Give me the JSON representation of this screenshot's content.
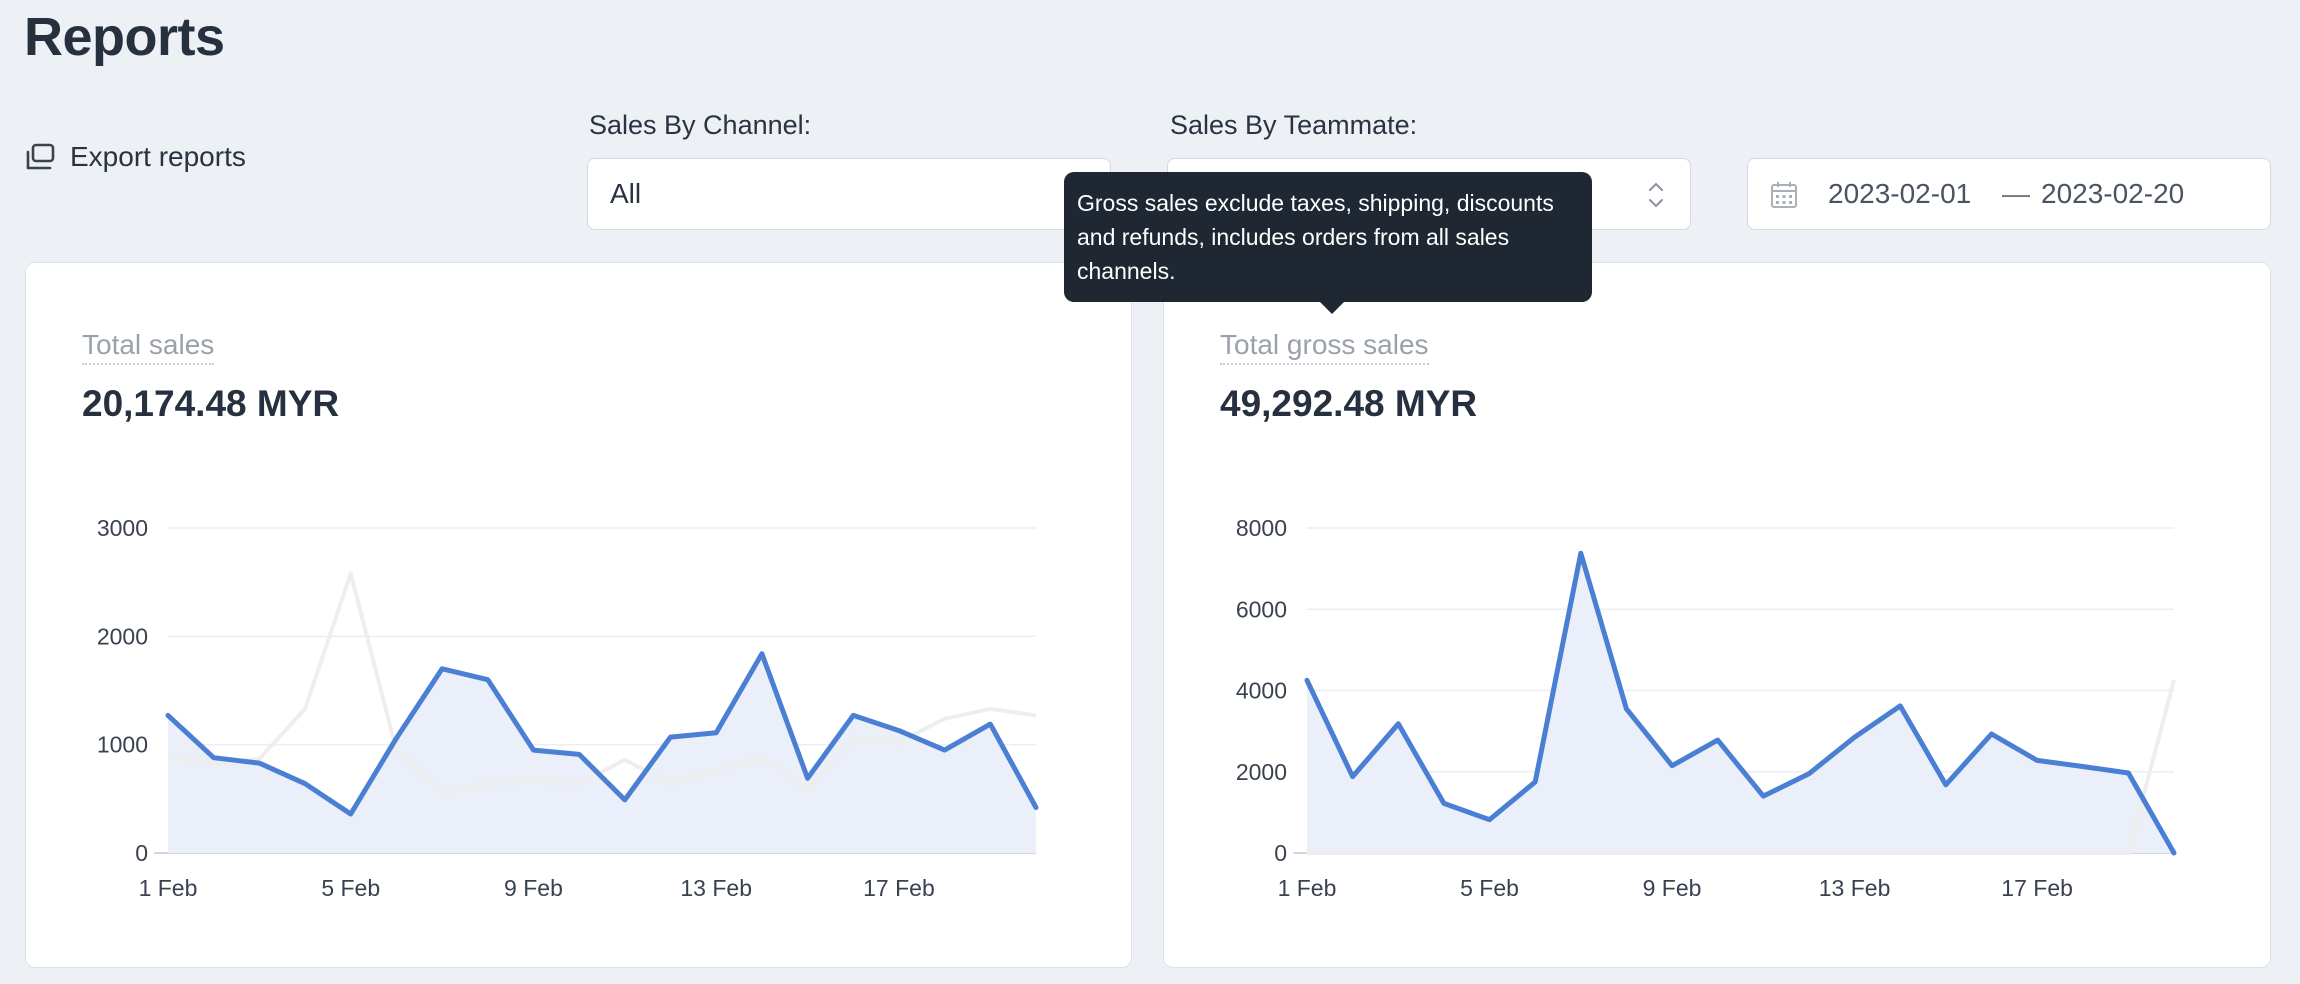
{
  "page": {
    "title": "Reports"
  },
  "toolbar": {
    "export_label": "Export reports",
    "channel": {
      "label": "Sales By Channel:",
      "value": "All"
    },
    "teammate": {
      "label": "Sales By Teammate:",
      "value": ""
    },
    "date_range": {
      "start": "2023-02-01",
      "separator": "—",
      "end": "2023-02-20"
    }
  },
  "tooltip": {
    "text": "Gross sales exclude taxes, shipping, discounts and refunds, includes orders from all sales channels."
  },
  "colors": {
    "line": "#4a7fd4",
    "fill": "#eaeff9",
    "comparison": "#eeeeee",
    "grid": "#ebedf0",
    "axis": "#c8ccd3"
  },
  "cards": {
    "total_sales": {
      "label": "Total sales",
      "value": "20,174.48 MYR"
    },
    "gross_sales": {
      "label": "Total gross sales",
      "value": "49,292.48 MYR"
    }
  },
  "chart_data": [
    {
      "type": "area",
      "x": [
        "1 Feb",
        "2 Feb",
        "3 Feb",
        "4 Feb",
        "5 Feb",
        "6 Feb",
        "7 Feb",
        "8 Feb",
        "9 Feb",
        "10 Feb",
        "11 Feb",
        "12 Feb",
        "13 Feb",
        "14 Feb",
        "15 Feb",
        "16 Feb",
        "17 Feb",
        "18 Feb",
        "19 Feb",
        "20 Feb"
      ],
      "x_tick_labels": [
        "1 Feb",
        "5 Feb",
        "9 Feb",
        "13 Feb",
        "17 Feb"
      ],
      "series": [
        {
          "values": [
            1270,
            880,
            830,
            640,
            360,
            1060,
            1700,
            1600,
            950,
            910,
            490,
            1070,
            1110,
            1840,
            690,
            1270,
            1130,
            950,
            1190,
            420
          ]
        },
        {
          "role": "comparison",
          "values": [
            900,
            820,
            870,
            1330,
            2580,
            950,
            560,
            640,
            660,
            640,
            860,
            640,
            760,
            880,
            590,
            1070,
            1020,
            1240,
            1330,
            1270
          ]
        }
      ],
      "y_ticks": [
        0,
        1000,
        2000,
        3000
      ],
      "ylim": [
        0,
        3000
      ],
      "grid": true
    },
    {
      "type": "area",
      "x": [
        "1 Feb",
        "2 Feb",
        "3 Feb",
        "4 Feb",
        "5 Feb",
        "6 Feb",
        "7 Feb",
        "8 Feb",
        "9 Feb",
        "10 Feb",
        "11 Feb",
        "12 Feb",
        "13 Feb",
        "14 Feb",
        "15 Feb",
        "16 Feb",
        "17 Feb",
        "18 Feb",
        "19 Feb",
        "20 Feb"
      ],
      "x_tick_labels": [
        "1 Feb",
        "5 Feb",
        "9 Feb",
        "13 Feb",
        "17 Feb"
      ],
      "series": [
        {
          "values": [
            4250,
            1880,
            3180,
            1220,
            820,
            1750,
            7380,
            3550,
            2150,
            2780,
            1400,
            1950,
            2850,
            3620,
            1680,
            2930,
            2280,
            2130,
            1970,
            0
          ]
        },
        {
          "role": "comparison",
          "values": [
            0,
            0,
            0,
            0,
            0,
            0,
            0,
            0,
            0,
            0,
            0,
            0,
            0,
            0,
            0,
            0,
            0,
            0,
            0,
            4260
          ]
        }
      ],
      "y_ticks": [
        0,
        2000,
        4000,
        6000,
        8000
      ],
      "ylim": [
        0,
        8000
      ],
      "grid": true
    }
  ]
}
